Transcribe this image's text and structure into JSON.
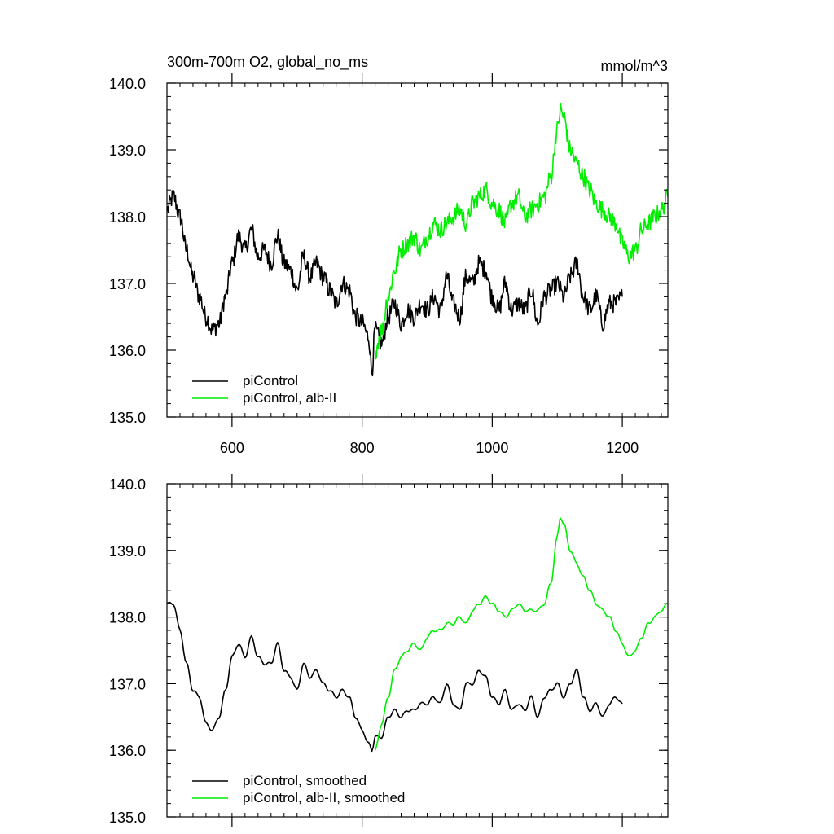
{
  "colors": {
    "control": "#000000",
    "albedo": "#00ee00",
    "axis": "#000000",
    "background": "#ffffff"
  },
  "chart_data": [
    {
      "type": "line",
      "title": "300m-700m O2, global_no_ms",
      "units": "mmol/m^3",
      "xlim": [
        500,
        1270
      ],
      "ylim": [
        135,
        140
      ],
      "x_ticks": [
        600,
        800,
        1000,
        1200
      ],
      "x_tick_labels": [
        "600",
        "800",
        "1000",
        "1200"
      ],
      "y_ticks": [
        135,
        136,
        137,
        138,
        139,
        140
      ],
      "y_tick_labels": [
        "135.0",
        "136.0",
        "137.0",
        "138.0",
        "139.0",
        "140.0"
      ],
      "legend": {
        "placement": "bottom-left",
        "entries": [
          "piControl",
          "piControl, alb-II"
        ]
      },
      "series": [
        {
          "name": "piControl",
          "color": "#000000",
          "smooth": false,
          "x": [
            500,
            510,
            520,
            530,
            540,
            550,
            560,
            570,
            580,
            590,
            600,
            610,
            620,
            630,
            640,
            650,
            660,
            670,
            680,
            690,
            700,
            710,
            720,
            730,
            740,
            750,
            760,
            770,
            780,
            790,
            800,
            810,
            815,
            820,
            830,
            840,
            850,
            860,
            870,
            880,
            890,
            900,
            910,
            920,
            930,
            940,
            950,
            960,
            970,
            980,
            990,
            1000,
            1010,
            1020,
            1030,
            1040,
            1050,
            1060,
            1070,
            1080,
            1090,
            1100,
            1110,
            1120,
            1130,
            1140,
            1150,
            1160,
            1170,
            1180,
            1190,
            1200
          ],
          "y": [
            138.1,
            138.3,
            138.0,
            137.5,
            137.1,
            136.8,
            136.5,
            136.3,
            136.4,
            136.8,
            137.3,
            137.7,
            137.5,
            137.8,
            137.4,
            137.5,
            137.3,
            137.7,
            137.3,
            137.2,
            136.9,
            137.4,
            137.1,
            137.3,
            137.1,
            136.9,
            136.7,
            137.0,
            136.9,
            136.5,
            136.4,
            136.2,
            135.7,
            136.3,
            136.1,
            136.5,
            136.7,
            136.4,
            136.6,
            136.5,
            136.7,
            136.6,
            136.8,
            136.6,
            137.1,
            136.7,
            136.5,
            137.1,
            137.0,
            137.3,
            137.2,
            136.8,
            136.6,
            137.0,
            136.6,
            136.7,
            136.6,
            136.9,
            136.4,
            136.8,
            136.9,
            137.0,
            136.8,
            137.1,
            137.3,
            136.8,
            136.6,
            136.8,
            136.4,
            136.7,
            136.7,
            136.8
          ]
        },
        {
          "name": "piControl, alb-II",
          "color": "#00ee00",
          "smooth": false,
          "x": [
            820,
            830,
            840,
            850,
            860,
            870,
            880,
            890,
            900,
            910,
            920,
            930,
            940,
            950,
            960,
            970,
            980,
            990,
            1000,
            1010,
            1020,
            1030,
            1040,
            1050,
            1060,
            1070,
            1080,
            1090,
            1100,
            1105,
            1110,
            1120,
            1130,
            1140,
            1150,
            1160,
            1170,
            1180,
            1190,
            1200,
            1210,
            1220,
            1230,
            1240,
            1250,
            1260,
            1270
          ],
          "y": [
            136.0,
            136.3,
            136.8,
            137.2,
            137.5,
            137.6,
            137.7,
            137.5,
            137.7,
            137.9,
            137.8,
            137.9,
            138.0,
            138.1,
            137.9,
            138.2,
            138.3,
            138.4,
            138.2,
            138.1,
            137.9,
            138.2,
            138.3,
            138.0,
            138.1,
            138.2,
            138.3,
            138.6,
            139.3,
            139.6,
            139.5,
            139.0,
            138.8,
            138.6,
            138.4,
            138.2,
            138.1,
            138.0,
            137.9,
            137.6,
            137.4,
            137.5,
            137.8,
            137.9,
            138.0,
            138.1,
            138.3
          ]
        }
      ]
    },
    {
      "type": "line",
      "xlim": [
        500,
        1270
      ],
      "ylim": [
        135,
        140
      ],
      "x_ticks": [
        600,
        800,
        1000,
        1200
      ],
      "y_ticks": [
        135,
        136,
        137,
        138,
        139,
        140
      ],
      "y_tick_labels": [
        "135.0",
        "136.0",
        "137.0",
        "138.0",
        "139.0",
        "140.0"
      ],
      "legend": {
        "placement": "bottom-left",
        "entries": [
          "piControl, smoothed",
          "piControl, alb-II, smoothed"
        ]
      },
      "series": [
        {
          "name": "piControl, smoothed",
          "color": "#000000",
          "smooth": true,
          "x": [
            500,
            510,
            520,
            530,
            540,
            550,
            560,
            570,
            580,
            590,
            600,
            610,
            620,
            630,
            640,
            650,
            660,
            670,
            680,
            690,
            700,
            710,
            720,
            730,
            740,
            750,
            760,
            770,
            780,
            790,
            800,
            810,
            815,
            820,
            830,
            840,
            850,
            860,
            870,
            880,
            890,
            900,
            910,
            920,
            930,
            940,
            950,
            960,
            970,
            980,
            990,
            1000,
            1010,
            1020,
            1030,
            1040,
            1050,
            1060,
            1070,
            1080,
            1090,
            1100,
            1110,
            1120,
            1130,
            1140,
            1150,
            1160,
            1170,
            1180,
            1190,
            1200
          ],
          "y": [
            138.2,
            138.2,
            137.8,
            137.3,
            136.9,
            136.8,
            136.4,
            136.3,
            136.5,
            136.9,
            137.4,
            137.6,
            137.4,
            137.7,
            137.4,
            137.3,
            137.3,
            137.6,
            137.2,
            137.1,
            136.9,
            137.3,
            137.1,
            137.2,
            137.0,
            136.9,
            136.8,
            136.9,
            136.8,
            136.5,
            136.3,
            136.1,
            136.0,
            136.2,
            136.2,
            136.5,
            136.6,
            136.5,
            136.6,
            136.6,
            136.7,
            136.7,
            136.8,
            136.7,
            137.0,
            136.7,
            136.6,
            137.0,
            137.0,
            137.2,
            137.1,
            136.8,
            136.7,
            136.9,
            136.6,
            136.7,
            136.6,
            136.8,
            136.5,
            136.8,
            136.9,
            137.0,
            136.8,
            137.0,
            137.2,
            136.8,
            136.6,
            136.7,
            136.5,
            136.7,
            136.8,
            136.7
          ]
        },
        {
          "name": "piControl, alb-II, smoothed",
          "color": "#00ee00",
          "smooth": true,
          "x": [
            820,
            830,
            840,
            850,
            860,
            870,
            880,
            890,
            900,
            910,
            920,
            930,
            940,
            950,
            960,
            970,
            980,
            990,
            1000,
            1010,
            1020,
            1030,
            1040,
            1050,
            1060,
            1070,
            1080,
            1090,
            1100,
            1105,
            1110,
            1120,
            1130,
            1140,
            1150,
            1160,
            1170,
            1180,
            1190,
            1200,
            1210,
            1220,
            1230,
            1240,
            1250,
            1260,
            1270
          ],
          "y": [
            136.0,
            136.4,
            136.8,
            137.2,
            137.4,
            137.5,
            137.6,
            137.5,
            137.7,
            137.8,
            137.8,
            137.9,
            137.9,
            138.0,
            137.9,
            138.1,
            138.2,
            138.3,
            138.2,
            138.1,
            138.0,
            138.1,
            138.2,
            138.1,
            138.1,
            138.1,
            138.2,
            138.5,
            139.2,
            139.5,
            139.4,
            139.0,
            138.8,
            138.6,
            138.4,
            138.2,
            138.1,
            138.0,
            137.8,
            137.6,
            137.4,
            137.5,
            137.7,
            137.9,
            138.0,
            138.1,
            138.2
          ]
        }
      ]
    }
  ]
}
